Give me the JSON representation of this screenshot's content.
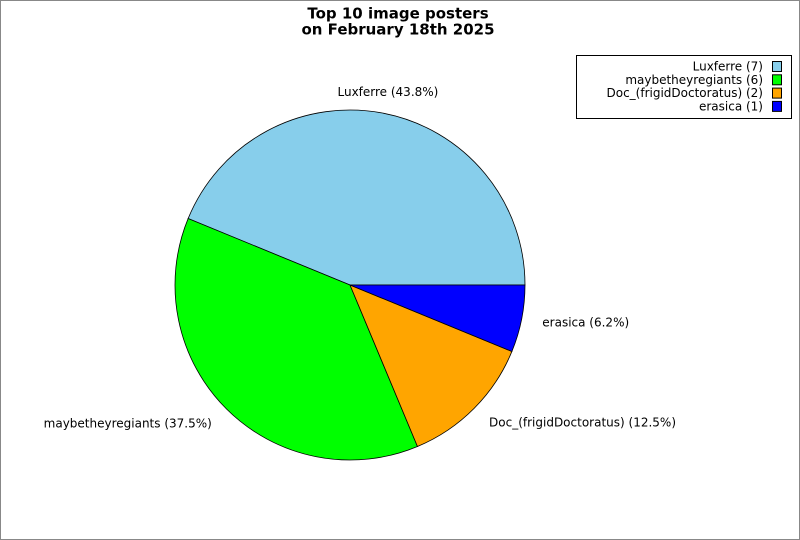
{
  "chart_data": {
    "type": "pie",
    "title": [
      "Top 10 image posters",
      "on February 18th 2025"
    ],
    "categories": [
      "Luxferre (7)",
      "maybetheyregiants (6)",
      "Doc_(frigidDoctoratus) (2)",
      "erasica (1)"
    ],
    "values": [
      43.8,
      37.5,
      12.5,
      6.2
    ],
    "value_labels": [
      "Luxferre (43.8%)",
      "maybetheyregiants (37.5%)",
      "Doc_(frigidDoctoratus) (12.5%)",
      "erasica (6.2%)"
    ],
    "colors": [
      "#87ceeb",
      "#00ff00",
      "#ffa500",
      "#0000ff"
    ],
    "legend": "upper right"
  }
}
